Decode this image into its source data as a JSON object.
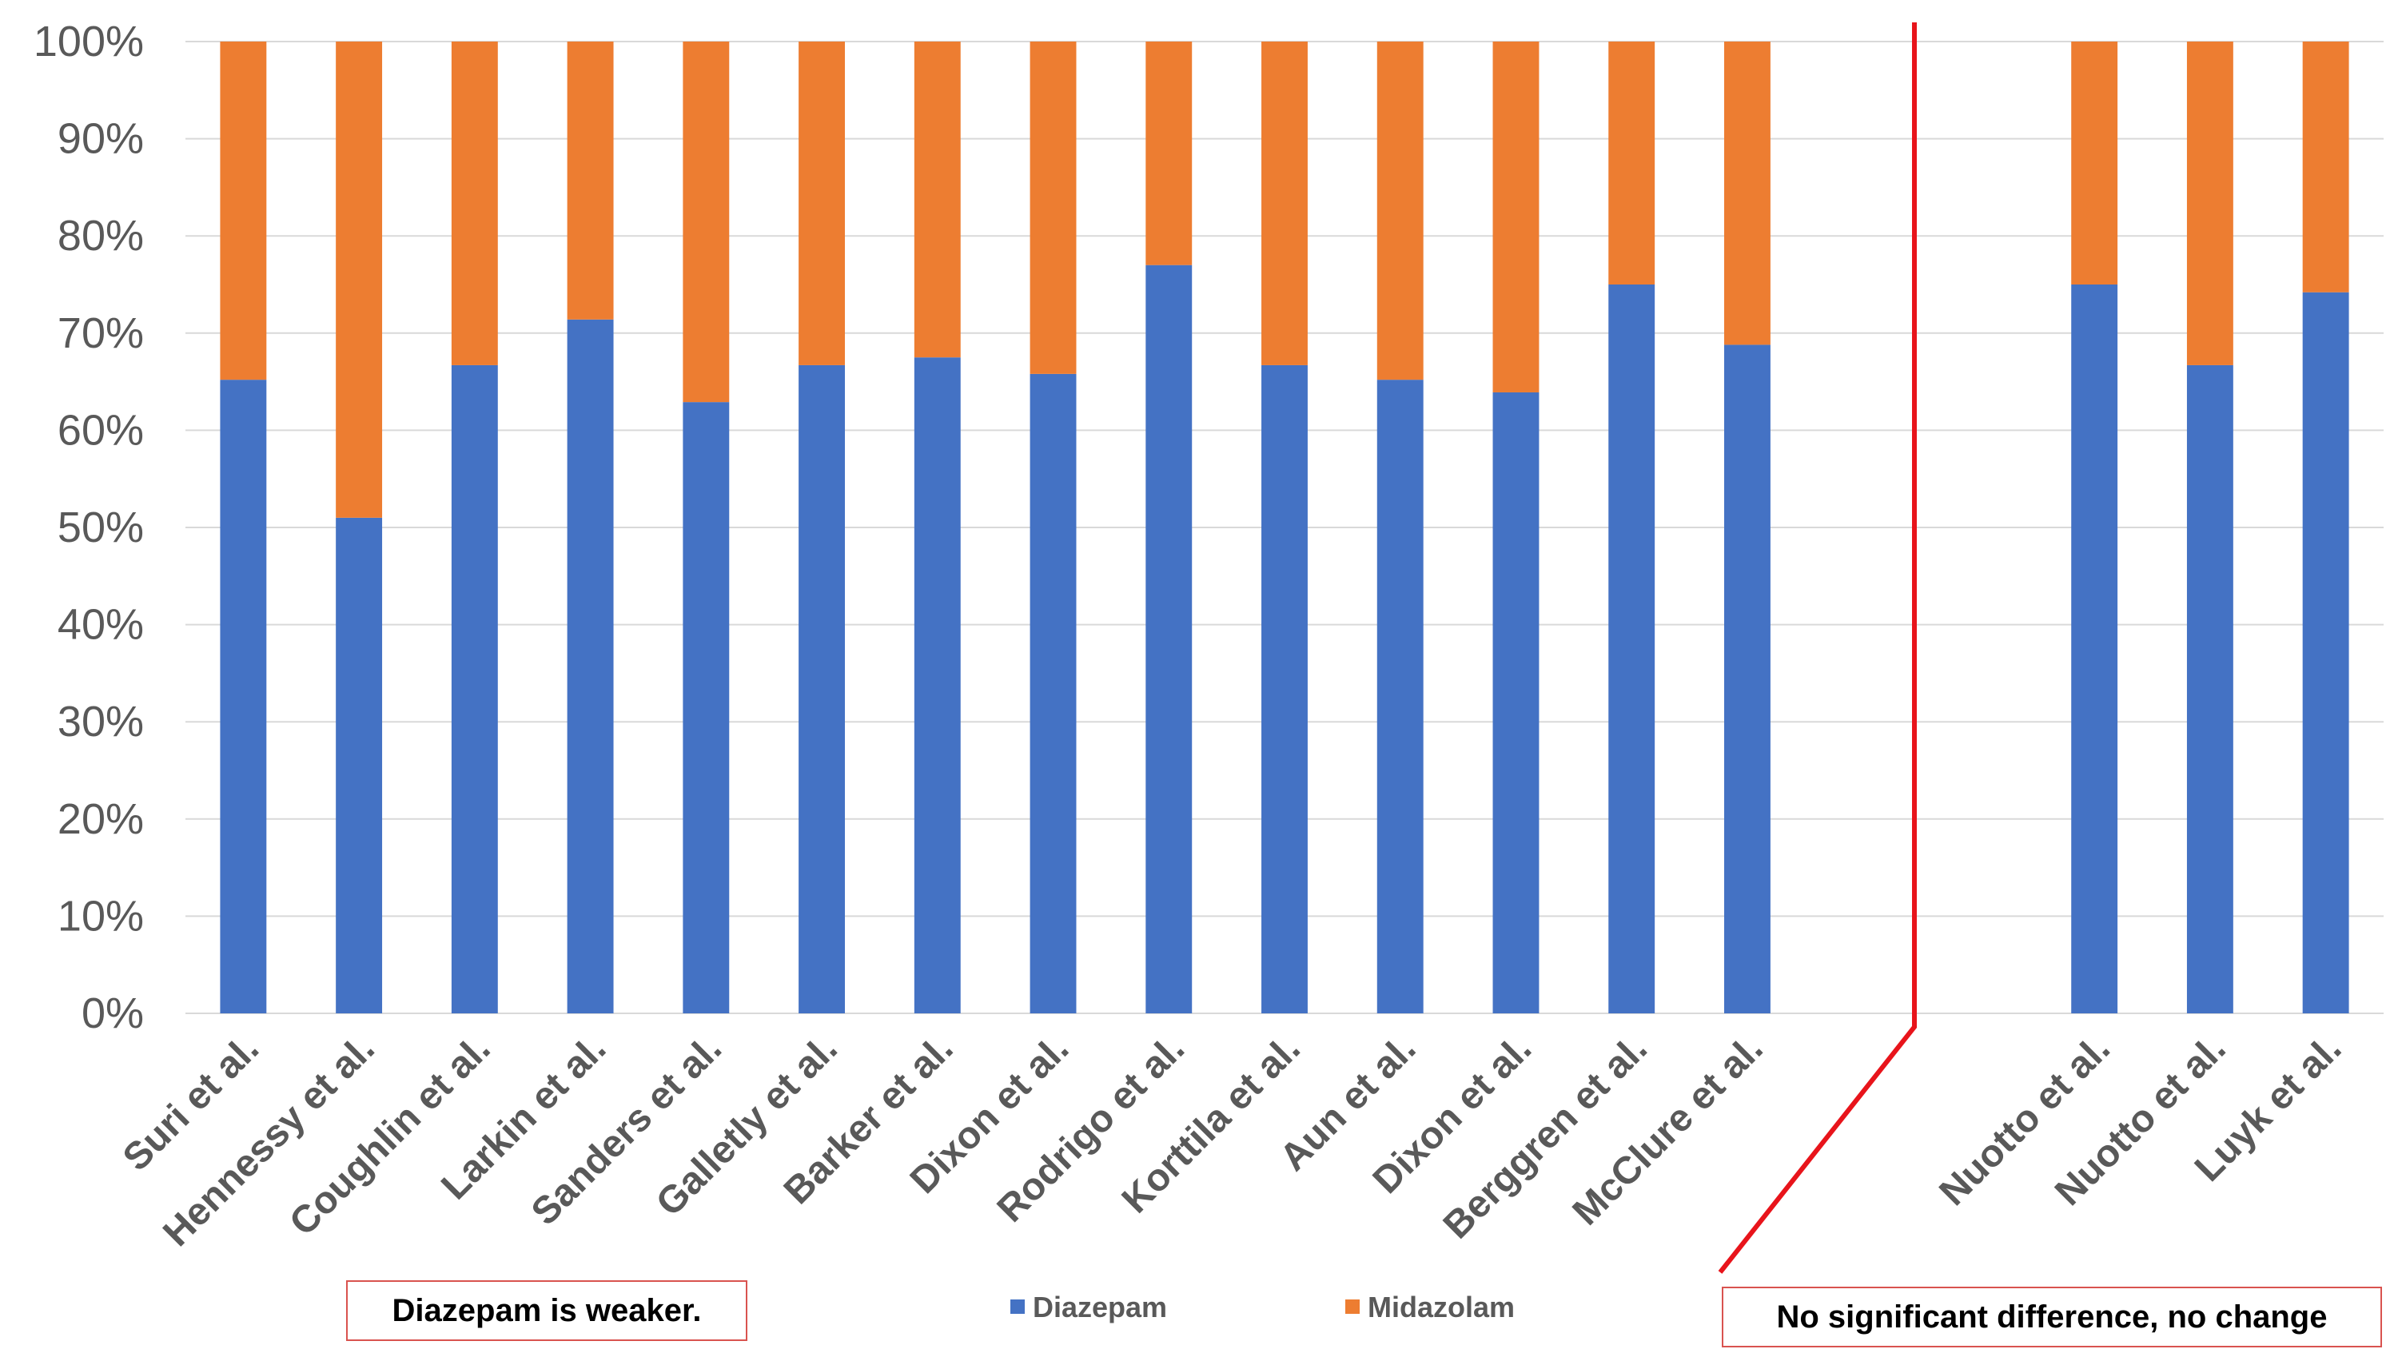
{
  "chart_data": {
    "type": "bar",
    "stacked": true,
    "percent": true,
    "categories": [
      "Suri et al.",
      "Hennessy et al.",
      "Coughlin et al.",
      "Larkin et al.",
      "Sanders et al.",
      "Galletly et al.",
      "Barker et al.",
      "Dixon et al.",
      "Rodrigo et al.",
      "Korttila et al.",
      "Aun et al.",
      "Dixon et al.",
      "Berggren et al.",
      "McClure et al.",
      "",
      "",
      "Nuotto et al.",
      "Nuotto et al.",
      "Luyk et al."
    ],
    "series": [
      {
        "name": "Diazepam",
        "color": "#4472c4",
        "values": [
          65.2,
          51,
          66.7,
          71.4,
          62.9,
          66.7,
          67.5,
          65.8,
          77,
          66.7,
          65.2,
          63.9,
          75,
          68.8,
          null,
          null,
          75,
          66.7,
          74.2
        ]
      },
      {
        "name": "Midazolam",
        "color": "#ed7d31",
        "values": [
          34.8,
          49,
          33.3,
          28.6,
          37.1,
          33.3,
          32.5,
          34.2,
          23,
          33.3,
          34.8,
          36.1,
          25,
          31.2,
          null,
          null,
          25,
          33.3,
          25.8
        ]
      }
    ],
    "yticks": [
      "0%",
      "10%",
      "20%",
      "30%",
      "40%",
      "50%",
      "60%",
      "70%",
      "80%",
      "90%",
      "100%"
    ],
    "ylim": [
      0,
      100
    ],
    "grid": true,
    "legend_position": "bottom",
    "divider_color": "#e8141b",
    "gridline_color": "#d9d9d9"
  },
  "annotations": {
    "left_label": "Diazepam is weaker.",
    "right_label": "No significant difference, no change"
  }
}
